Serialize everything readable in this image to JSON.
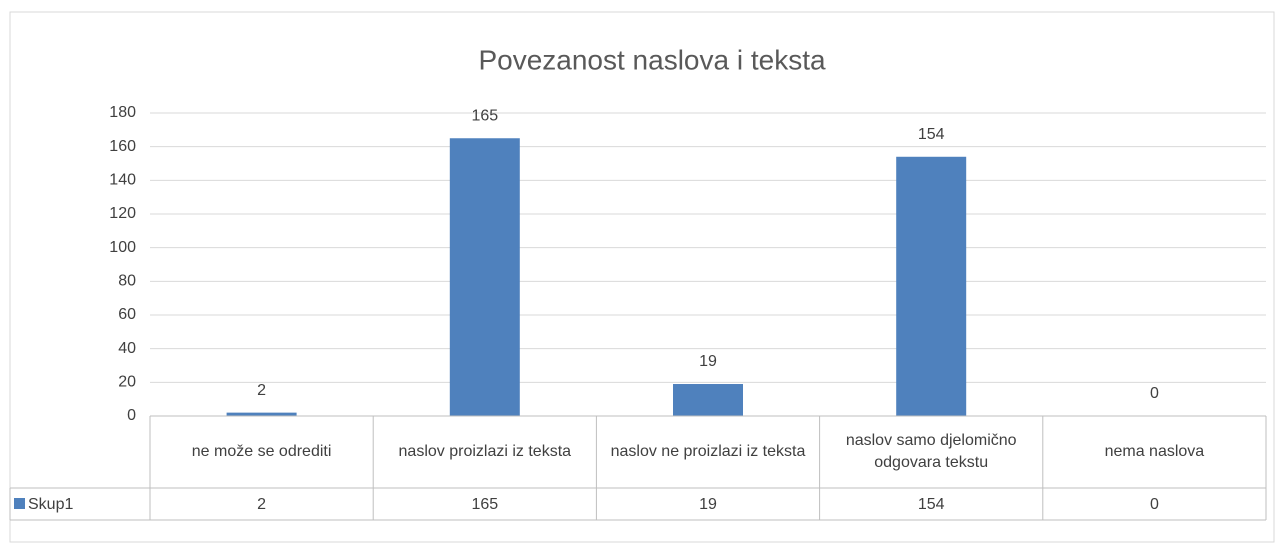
{
  "chart_data": {
    "type": "bar",
    "title": "Povezanost naslova i teksta",
    "categories": [
      "ne može se odrediti",
      "naslov proizlazi iz teksta",
      "naslov ne proizlazi iz teksta",
      "naslov samo djelomično odgovara tekstu",
      "nema naslova"
    ],
    "series": [
      {
        "name": "Skup1",
        "color": "#4f81bd",
        "values": [
          2,
          165,
          19,
          154,
          0
        ]
      }
    ],
    "ylim": [
      0,
      180
    ],
    "yticks": [
      0,
      20,
      40,
      60,
      80,
      100,
      120,
      140,
      160,
      180
    ],
    "grid": true
  }
}
